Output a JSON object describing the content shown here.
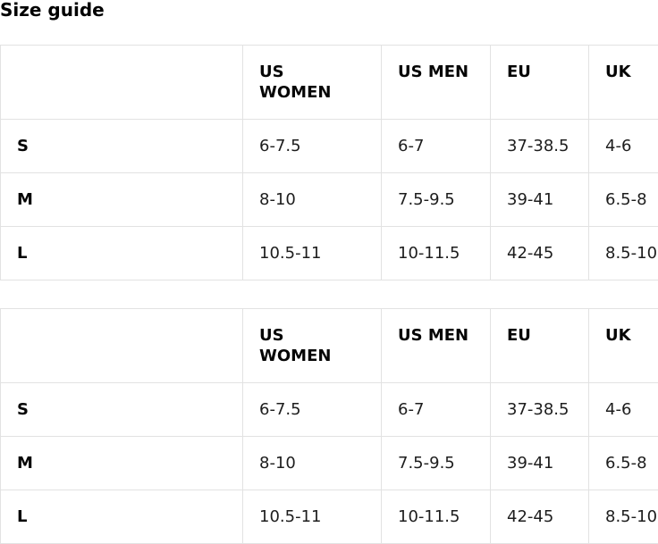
{
  "heading": "Size guide",
  "colors": {
    "border": "#e2e2e2",
    "heading_text": "#000000",
    "header_text": "#050505",
    "cell_text": "#1d1d1d",
    "background": "#ffffff"
  },
  "tables": [
    {
      "columns": [
        "",
        "US\nWOMEN",
        "US MEN",
        "EU",
        "UK"
      ],
      "rows": [
        {
          "label": "S",
          "values": [
            "6-7.5",
            "6-7",
            "37-38.5",
            "4-6"
          ]
        },
        {
          "label": "M",
          "values": [
            "8-10",
            "7.5-9.5",
            "39-41",
            "6.5-8"
          ]
        },
        {
          "label": "L",
          "values": [
            "10.5-11",
            "10-11.5",
            "42-45",
            "8.5-10"
          ]
        }
      ]
    },
    {
      "columns": [
        "",
        "US\nWOMEN",
        "US MEN",
        "EU",
        "UK"
      ],
      "rows": [
        {
          "label": "S",
          "values": [
            "6-7.5",
            "6-7",
            "37-38.5",
            "4-6"
          ]
        },
        {
          "label": "M",
          "values": [
            "8-10",
            "7.5-9.5",
            "39-41",
            "6.5-8"
          ]
        },
        {
          "label": "L",
          "values": [
            "10.5-11",
            "10-11.5",
            "42-45",
            "8.5-10"
          ]
        }
      ]
    }
  ]
}
